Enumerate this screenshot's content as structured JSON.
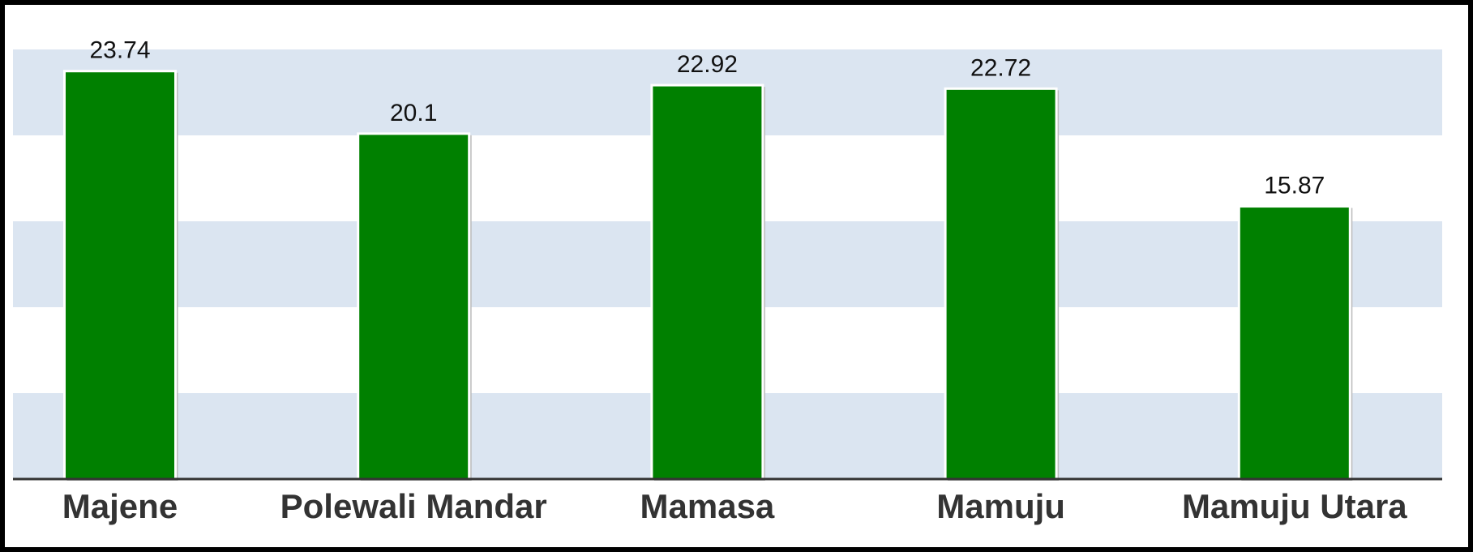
{
  "chart_data": {
    "type": "bar",
    "categories": [
      "Majene",
      "Polewali Mandar",
      "Mamasa",
      "Mamuju",
      "Mamuju Utara"
    ],
    "values": [
      23.74,
      20.1,
      22.92,
      22.72,
      15.87
    ],
    "color": "#008000",
    "ylim": [
      0,
      25
    ],
    "yticks": [
      0,
      5,
      10,
      15,
      20,
      25
    ],
    "band_color": "#dbe5f1"
  }
}
